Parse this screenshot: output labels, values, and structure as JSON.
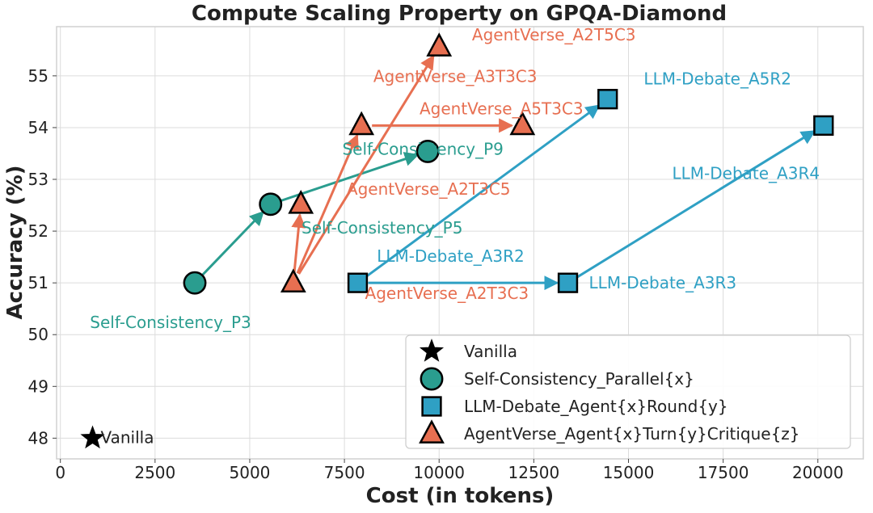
{
  "chart_data": {
    "type": "scatter",
    "title": "Compute Scaling Property on GPQA-Diamond",
    "xlabel": "Cost (in tokens)",
    "ylabel": "Accuracy (%)",
    "xlim": [
      -100,
      21200
    ],
    "ylim": [
      47.6,
      55.95
    ],
    "xticks": [
      0,
      2500,
      5000,
      7500,
      10000,
      12500,
      15000,
      17500,
      20000
    ],
    "yticks": [
      48,
      49,
      50,
      51,
      52,
      53,
      54,
      55
    ],
    "grid": true,
    "legend_position": "lower-right",
    "colors": {
      "vanilla": "#000000",
      "self_consistency": "#2a9d8f",
      "llm_debate": "#2fa0c4",
      "agentverse": "#e76f51",
      "edge": "#000000"
    },
    "series": [
      {
        "name": "Vanilla",
        "key": "vanilla",
        "marker": "star",
        "points": [
          {
            "label": "Vanilla",
            "x": 850,
            "y": 48.0
          }
        ]
      },
      {
        "name": "Self-Consistency_Parallel{x}",
        "key": "self_consistency",
        "marker": "circle",
        "points": [
          {
            "label": "Self-Consistency_P3",
            "x": 3550,
            "y": 51.0
          },
          {
            "label": "Self-Consistency_P5",
            "x": 5550,
            "y": 52.52
          },
          {
            "label": "Self-Consistency_P9",
            "x": 9700,
            "y": 53.54
          }
        ],
        "arrows": [
          [
            0,
            1
          ],
          [
            1,
            2
          ]
        ]
      },
      {
        "name": "LLM-Debate_Agent{x}Round{y}",
        "key": "llm_debate",
        "marker": "square",
        "points": [
          {
            "label": "LLM-Debate_A3R2",
            "x": 7850,
            "y": 51.0
          },
          {
            "label": "LLM-Debate_A3R3",
            "x": 13400,
            "y": 51.0
          },
          {
            "label": "LLM-Debate_A3R4",
            "x": 20150,
            "y": 54.04
          },
          {
            "label": "LLM-Debate_A5R2",
            "x": 14450,
            "y": 54.55
          }
        ],
        "arrows": [
          [
            0,
            1
          ],
          [
            1,
            2
          ],
          [
            0,
            3
          ]
        ]
      },
      {
        "name": "AgentVerse_Agent{x}Turn{y}Critique{z}",
        "key": "agentverse",
        "marker": "triangle",
        "points": [
          {
            "label": "AgentVerse_A2T3C3",
            "x": 6150,
            "y": 51.0
          },
          {
            "label": "AgentVerse_A2T3C5",
            "x": 6350,
            "y": 52.52
          },
          {
            "label": "AgentVerse_A3T3C3",
            "x": 7950,
            "y": 54.04
          },
          {
            "label": "AgentVerse_A5T3C3",
            "x": 12200,
            "y": 54.04
          },
          {
            "label": "AgentVerse_A2T5C3",
            "x": 10000,
            "y": 55.56
          }
        ],
        "arrows": [
          [
            0,
            1
          ],
          [
            0,
            2
          ],
          [
            0,
            4
          ],
          [
            2,
            3
          ]
        ]
      }
    ]
  }
}
